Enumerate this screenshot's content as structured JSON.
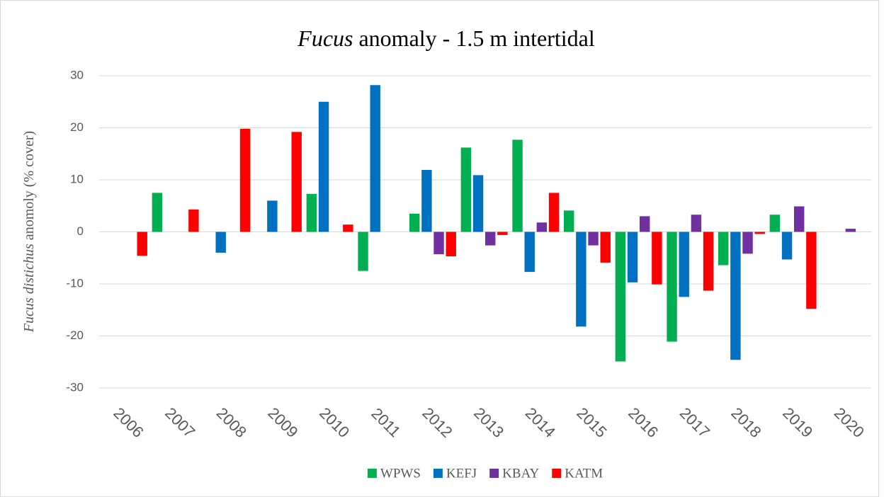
{
  "chart_data": {
    "type": "bar",
    "title": [
      {
        "text": "Fucus",
        "italic": true
      },
      {
        "text": " anomaly - 1.5 m intertidal",
        "italic": false
      }
    ],
    "y_label": [
      {
        "text": "Fucus distichus",
        "italic": true
      },
      {
        "text": " anomoly (% cover)",
        "italic": false
      }
    ],
    "categories": [
      "2006",
      "2007",
      "2008",
      "2009",
      "2010",
      "2011",
      "2012",
      "2013",
      "2014",
      "2015",
      "2016",
      "2017",
      "2018",
      "2019",
      "2020"
    ],
    "series": [
      {
        "name": "WPWS",
        "color": "#00b050",
        "values": [
          null,
          7.5,
          null,
          null,
          7.3,
          -7.5,
          3.5,
          16.2,
          17.7,
          4.1,
          -24.9,
          -21.1,
          -6.4,
          3.3,
          null
        ]
      },
      {
        "name": "KEFJ",
        "color": "#0070c0",
        "values": [
          null,
          null,
          -4,
          6,
          25,
          28.2,
          11.9,
          10.9,
          -7.7,
          -18.2,
          -9.7,
          -12.5,
          -24.6,
          -5.3,
          null
        ]
      },
      {
        "name": "KBAY",
        "color": "#7030a0",
        "values": [
          null,
          null,
          null,
          null,
          null,
          null,
          -4.3,
          -2.6,
          1.8,
          -2.6,
          3,
          3.3,
          -4.2,
          4.9,
          0.6
        ]
      },
      {
        "name": "KATM",
        "color": "#ff0000",
        "values": [
          -4.6,
          4.3,
          19.8,
          19.2,
          1.4,
          null,
          -4.7,
          -0.6,
          7.5,
          -5.9,
          -10.1,
          -11.3,
          -0.4,
          -14.8,
          null
        ]
      }
    ],
    "ylim": [
      -30,
      30
    ],
    "yticks": [
      -30,
      -20,
      -10,
      0,
      10,
      20,
      30
    ],
    "grid": true,
    "legend": "bottom"
  }
}
